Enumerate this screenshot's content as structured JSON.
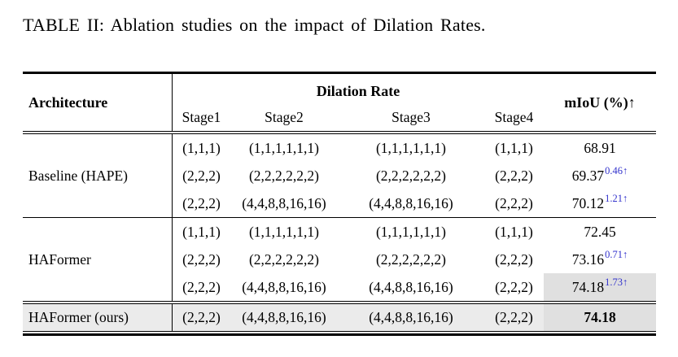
{
  "title": "TABLE II: Ablation studies on the impact of Dilation Rates.",
  "colors": {
    "gain_blue": "#3333cc",
    "highlight_cell": "#e0e0e0",
    "final_row_bg": "#ebebeb",
    "rule_black": "#000000"
  },
  "table": {
    "header": {
      "architecture": "Architecture",
      "dilation_rate": "Dilation Rate",
      "stages": [
        "Stage1",
        "Stage2",
        "Stage3",
        "Stage4"
      ],
      "miou": "mIoU (%)↑"
    },
    "groups": [
      {
        "architecture": "Baseline (HAPE)",
        "rows": [
          {
            "stage1": "(1,1,1)",
            "stage2": "(1,1,1,1,1,1)",
            "stage3": "(1,1,1,1,1,1)",
            "stage4": "(1,1,1)",
            "miou": "68.91",
            "gain": ""
          },
          {
            "stage1": "(2,2,2)",
            "stage2": "(2,2,2,2,2,2)",
            "stage3": "(2,2,2,2,2,2)",
            "stage4": "(2,2,2)",
            "miou": "69.37",
            "gain": "0.46↑"
          },
          {
            "stage1": "(2,2,2)",
            "stage2": "(4,4,8,8,16,16)",
            "stage3": "(4,4,8,8,16,16)",
            "stage4": "(2,2,2)",
            "miou": "70.12",
            "gain": "1.21↑"
          }
        ]
      },
      {
        "architecture": "HAFormer",
        "rows": [
          {
            "stage1": "(1,1,1)",
            "stage2": "(1,1,1,1,1,1)",
            "stage3": "(1,1,1,1,1,1)",
            "stage4": "(1,1,1)",
            "miou": "72.45",
            "gain": ""
          },
          {
            "stage1": "(2,2,2)",
            "stage2": "(2,2,2,2,2,2)",
            "stage3": "(2,2,2,2,2,2)",
            "stage4": "(2,2,2)",
            "miou": "73.16",
            "gain": "0.71↑"
          },
          {
            "stage1": "(2,2,2)",
            "stage2": "(4,4,8,8,16,16)",
            "stage3": "(4,4,8,8,16,16)",
            "stage4": "(2,2,2)",
            "miou": "74.18",
            "gain": "1.73↑"
          }
        ]
      }
    ],
    "final_row": {
      "architecture": "HAFormer (ours)",
      "stage1": "(2,2,2)",
      "stage2": "(4,4,8,8,16,16)",
      "stage3": "(4,4,8,8,16,16)",
      "stage4": "(2,2,2)",
      "miou": "74.18"
    }
  }
}
